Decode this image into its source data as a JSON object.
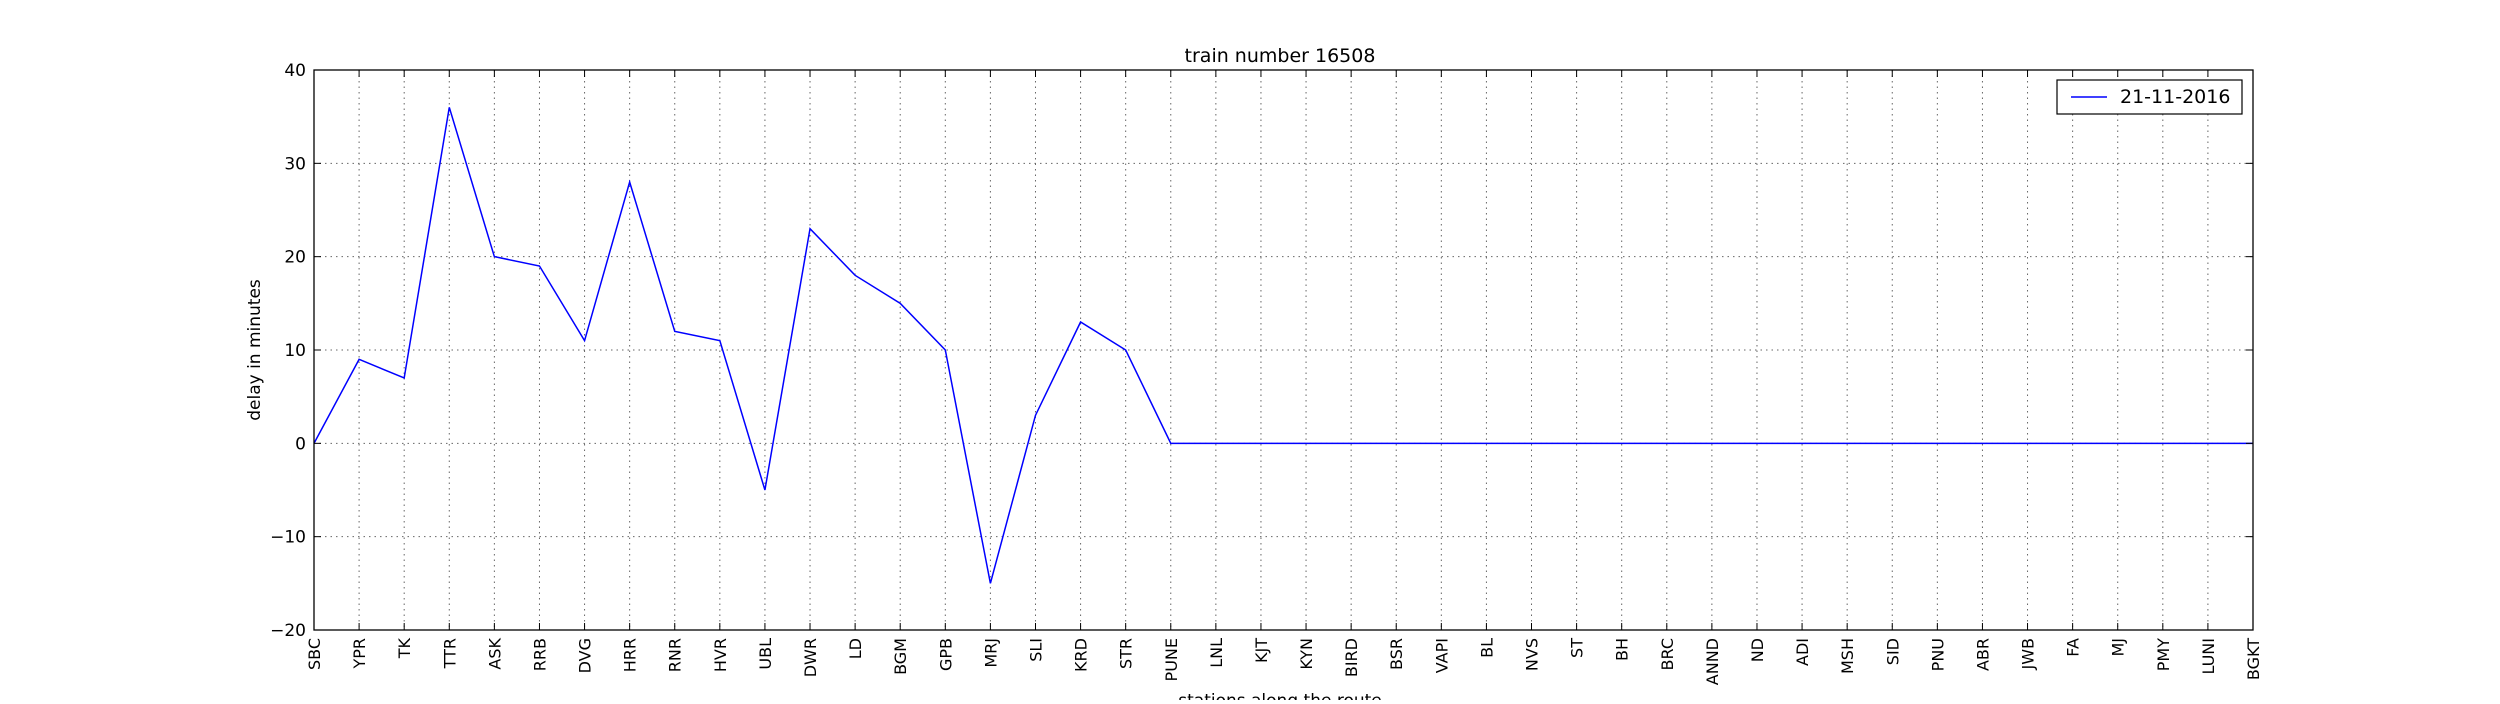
{
  "chart_data": {
    "type": "line",
    "title": "train number 16508",
    "xlabel": "stations along the route",
    "ylabel": "delay in minutes",
    "categories": [
      "SBC",
      "YPR",
      "TK",
      "TTR",
      "ASK",
      "RRB",
      "DVG",
      "HRR",
      "RNR",
      "HVR",
      "UBL",
      "DWR",
      "LD",
      "BGM",
      "GPB",
      "MRJ",
      "SLI",
      "KRD",
      "STR",
      "PUNE",
      "LNL",
      "KJT",
      "KYN",
      "BIRD",
      "BSR",
      "VAPI",
      "BL",
      "NVS",
      "ST",
      "BH",
      "BRC",
      "ANND",
      "ND",
      "ADI",
      "MSH",
      "SID",
      "PNU",
      "ABR",
      "JWB",
      "FA",
      "MJ",
      "PMY",
      "LUNI",
      "BGKT"
    ],
    "series": [
      {
        "name": "21-11-2016",
        "color": "#0000ff",
        "values": [
          0,
          9,
          7,
          36,
          20,
          19,
          11,
          28,
          12,
          11,
          -5,
          23,
          18,
          15,
          10,
          -15,
          3,
          13,
          10,
          0,
          0,
          0,
          0,
          0,
          0,
          0,
          0,
          0,
          0,
          0,
          0,
          0,
          0,
          0,
          0,
          0,
          0,
          0,
          0,
          0,
          0,
          0,
          0,
          0
        ]
      }
    ],
    "ylim": [
      -20,
      40
    ],
    "yticks": [
      -20,
      -10,
      0,
      10,
      20,
      30,
      40
    ],
    "ytick_labels": [
      "−20",
      "−10",
      "0",
      "10",
      "20",
      "30",
      "40"
    ],
    "grid": true,
    "legend_position": "top-right"
  }
}
